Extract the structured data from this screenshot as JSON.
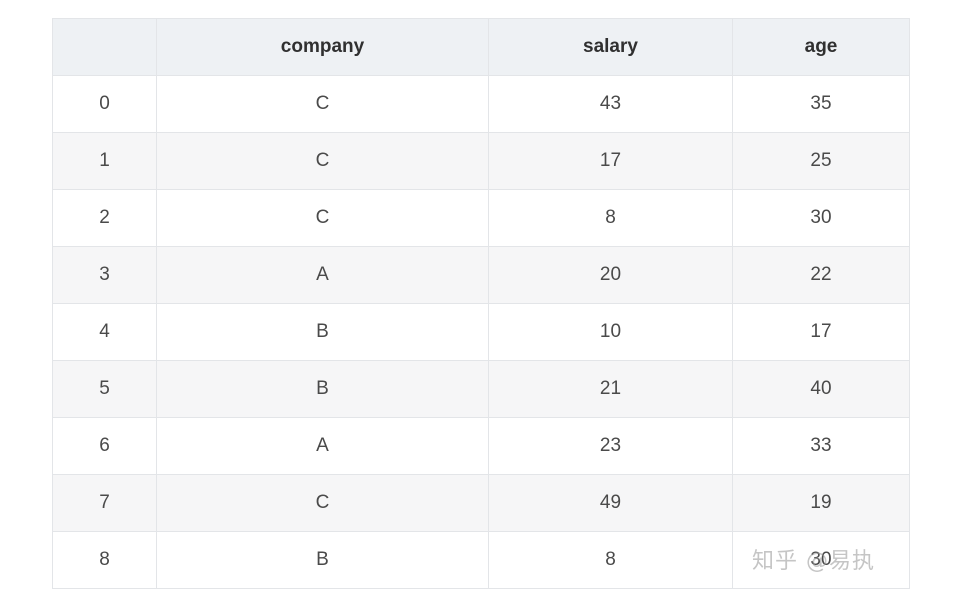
{
  "table": {
    "headers": [
      "",
      "company",
      "salary",
      "age"
    ],
    "rows": [
      [
        "0",
        "C",
        "43",
        "35"
      ],
      [
        "1",
        "C",
        "17",
        "25"
      ],
      [
        "2",
        "C",
        "8",
        "30"
      ],
      [
        "3",
        "A",
        "20",
        "22"
      ],
      [
        "4",
        "B",
        "10",
        "17"
      ],
      [
        "5",
        "B",
        "21",
        "40"
      ],
      [
        "6",
        "A",
        "23",
        "33"
      ],
      [
        "7",
        "C",
        "49",
        "19"
      ],
      [
        "8",
        "B",
        "8",
        "30"
      ]
    ]
  },
  "watermark": "知乎 @易执"
}
